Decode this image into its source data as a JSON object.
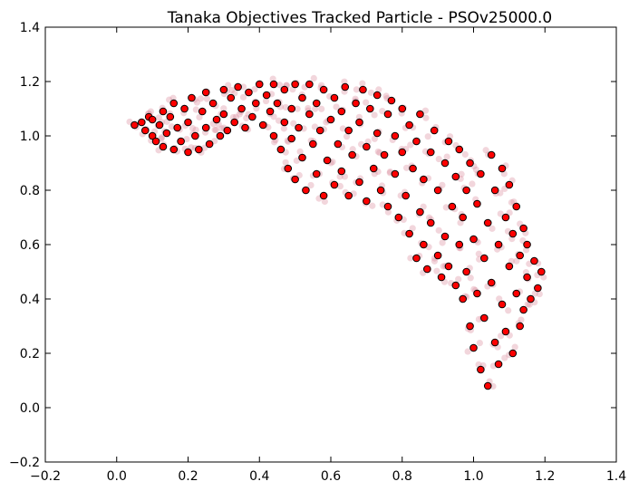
{
  "chart_data": {
    "type": "scatter",
    "title": "Tanaka Objectives Tracked Particle - PSOv25000.0",
    "xlabel": "",
    "ylabel": "",
    "xlim": [
      -0.2,
      1.4
    ],
    "ylim": [
      -0.2,
      1.4
    ],
    "xticks": [
      -0.2,
      0.0,
      0.2,
      0.4,
      0.6,
      0.8,
      1.0,
      1.2,
      1.4
    ],
    "yticks": [
      -0.2,
      0.0,
      0.2,
      0.4,
      0.6,
      0.8,
      1.0,
      1.2,
      1.4
    ],
    "xtick_labels": [
      "−0.2",
      "0.0",
      "0.2",
      "0.4",
      "0.6",
      "0.8",
      "1.0",
      "1.2",
      "1.4"
    ],
    "ytick_labels": [
      "−0.2",
      "0.0",
      "0.2",
      "0.4",
      "0.6",
      "0.8",
      "1.0",
      "1.2",
      "1.4"
    ],
    "grid": false,
    "marker_color": "#ff0000",
    "marker_edge": "#000000",
    "faded_color": "#d98a9a",
    "series": [
      {
        "points": [
          [
            0.05,
            1.04
          ],
          [
            0.07,
            1.05
          ],
          [
            0.08,
            1.02
          ],
          [
            0.09,
            1.07
          ],
          [
            0.1,
            1.0
          ],
          [
            0.1,
            1.06
          ],
          [
            0.11,
            0.98
          ],
          [
            0.12,
            1.04
          ],
          [
            0.13,
            1.09
          ],
          [
            0.13,
            0.96
          ],
          [
            0.14,
            1.01
          ],
          [
            0.15,
            1.07
          ],
          [
            0.16,
            0.95
          ],
          [
            0.16,
            1.12
          ],
          [
            0.17,
            1.03
          ],
          [
            0.18,
            0.98
          ],
          [
            0.19,
            1.1
          ],
          [
            0.2,
            0.94
          ],
          [
            0.2,
            1.05
          ],
          [
            0.21,
            1.14
          ],
          [
            0.22,
            1.0
          ],
          [
            0.23,
            0.95
          ],
          [
            0.24,
            1.09
          ],
          [
            0.25,
            1.16
          ],
          [
            0.25,
            1.03
          ],
          [
            0.26,
            0.97
          ],
          [
            0.27,
            1.12
          ],
          [
            0.28,
            1.06
          ],
          [
            0.29,
            1.0
          ],
          [
            0.3,
            1.17
          ],
          [
            0.3,
            1.08
          ],
          [
            0.31,
            1.02
          ],
          [
            0.32,
            1.14
          ],
          [
            0.33,
            1.05
          ],
          [
            0.34,
            1.18
          ],
          [
            0.35,
            1.1
          ],
          [
            0.36,
            1.03
          ],
          [
            0.37,
            1.16
          ],
          [
            0.38,
            1.07
          ],
          [
            0.39,
            1.12
          ],
          [
            0.4,
            1.19
          ],
          [
            0.41,
            1.04
          ],
          [
            0.42,
            1.15
          ],
          [
            0.43,
            1.09
          ],
          [
            0.44,
            1.0
          ],
          [
            0.44,
            1.19
          ],
          [
            0.45,
            1.12
          ],
          [
            0.46,
            0.95
          ],
          [
            0.47,
            1.05
          ],
          [
            0.47,
            1.17
          ],
          [
            0.48,
            0.88
          ],
          [
            0.49,
            1.1
          ],
          [
            0.49,
            0.99
          ],
          [
            0.5,
            1.19
          ],
          [
            0.5,
            0.84
          ],
          [
            0.51,
            1.03
          ],
          [
            0.52,
            1.14
          ],
          [
            0.52,
            0.92
          ],
          [
            0.53,
            0.8
          ],
          [
            0.54,
            1.08
          ],
          [
            0.54,
            1.19
          ],
          [
            0.55,
            0.97
          ],
          [
            0.56,
            0.86
          ],
          [
            0.56,
            1.12
          ],
          [
            0.57,
            1.02
          ],
          [
            0.58,
            0.78
          ],
          [
            0.58,
            1.17
          ],
          [
            0.59,
            0.91
          ],
          [
            0.6,
            1.06
          ],
          [
            0.61,
            0.82
          ],
          [
            0.61,
            1.14
          ],
          [
            0.62,
            0.97
          ],
          [
            0.63,
            1.09
          ],
          [
            0.63,
            0.87
          ],
          [
            0.64,
            1.18
          ],
          [
            0.65,
            0.78
          ],
          [
            0.65,
            1.02
          ],
          [
            0.66,
            0.93
          ],
          [
            0.67,
            1.12
          ],
          [
            0.68,
            0.83
          ],
          [
            0.68,
            1.05
          ],
          [
            0.69,
            1.17
          ],
          [
            0.7,
            0.96
          ],
          [
            0.7,
            0.76
          ],
          [
            0.71,
            1.1
          ],
          [
            0.72,
            0.88
          ],
          [
            0.73,
            1.15
          ],
          [
            0.73,
            1.01
          ],
          [
            0.74,
            0.8
          ],
          [
            0.75,
            0.93
          ],
          [
            0.76,
            1.08
          ],
          [
            0.76,
            0.74
          ],
          [
            0.77,
            1.13
          ],
          [
            0.78,
            0.86
          ],
          [
            0.78,
            1.0
          ],
          [
            0.79,
            0.7
          ],
          [
            0.8,
            0.94
          ],
          [
            0.8,
            1.1
          ],
          [
            0.81,
            0.78
          ],
          [
            0.82,
            1.04
          ],
          [
            0.82,
            0.64
          ],
          [
            0.83,
            0.88
          ],
          [
            0.84,
            0.55
          ],
          [
            0.84,
            0.98
          ],
          [
            0.85,
            0.72
          ],
          [
            0.85,
            1.08
          ],
          [
            0.86,
            0.6
          ],
          [
            0.86,
            0.84
          ],
          [
            0.87,
            0.51
          ],
          [
            0.88,
            0.94
          ],
          [
            0.88,
            0.68
          ],
          [
            0.89,
            1.02
          ],
          [
            0.9,
            0.56
          ],
          [
            0.9,
            0.8
          ],
          [
            0.91,
            0.48
          ],
          [
            0.92,
            0.9
          ],
          [
            0.92,
            0.63
          ],
          [
            0.93,
            0.98
          ],
          [
            0.93,
            0.52
          ],
          [
            0.94,
            0.74
          ],
          [
            0.95,
            0.85
          ],
          [
            0.95,
            0.45
          ],
          [
            0.96,
            0.6
          ],
          [
            0.96,
            0.95
          ],
          [
            0.97,
            0.4
          ],
          [
            0.97,
            0.7
          ],
          [
            0.98,
            0.8
          ],
          [
            0.98,
            0.5
          ],
          [
            0.99,
            0.3
          ],
          [
            0.99,
            0.9
          ],
          [
            1.0,
            0.62
          ],
          [
            1.0,
            0.22
          ],
          [
            1.01,
            0.75
          ],
          [
            1.01,
            0.42
          ],
          [
            1.02,
            0.86
          ],
          [
            1.02,
            0.14
          ],
          [
            1.03,
            0.55
          ],
          [
            1.03,
            0.33
          ],
          [
            1.04,
            0.68
          ],
          [
            1.04,
            0.08
          ],
          [
            1.05,
            0.93
          ],
          [
            1.05,
            0.46
          ],
          [
            1.06,
            0.24
          ],
          [
            1.06,
            0.8
          ],
          [
            1.07,
            0.6
          ],
          [
            1.07,
            0.16
          ],
          [
            1.08,
            0.38
          ],
          [
            1.08,
            0.88
          ],
          [
            1.09,
            0.7
          ],
          [
            1.09,
            0.28
          ],
          [
            1.1,
            0.52
          ],
          [
            1.1,
            0.82
          ],
          [
            1.11,
            0.2
          ],
          [
            1.11,
            0.64
          ],
          [
            1.12,
            0.42
          ],
          [
            1.12,
            0.74
          ],
          [
            1.13,
            0.3
          ],
          [
            1.13,
            0.56
          ],
          [
            1.14,
            0.66
          ],
          [
            1.14,
            0.36
          ],
          [
            1.15,
            0.48
          ],
          [
            1.15,
            0.6
          ],
          [
            1.16,
            0.4
          ],
          [
            1.17,
            0.54
          ],
          [
            1.18,
            0.44
          ],
          [
            1.19,
            0.5
          ]
        ]
      }
    ]
  }
}
